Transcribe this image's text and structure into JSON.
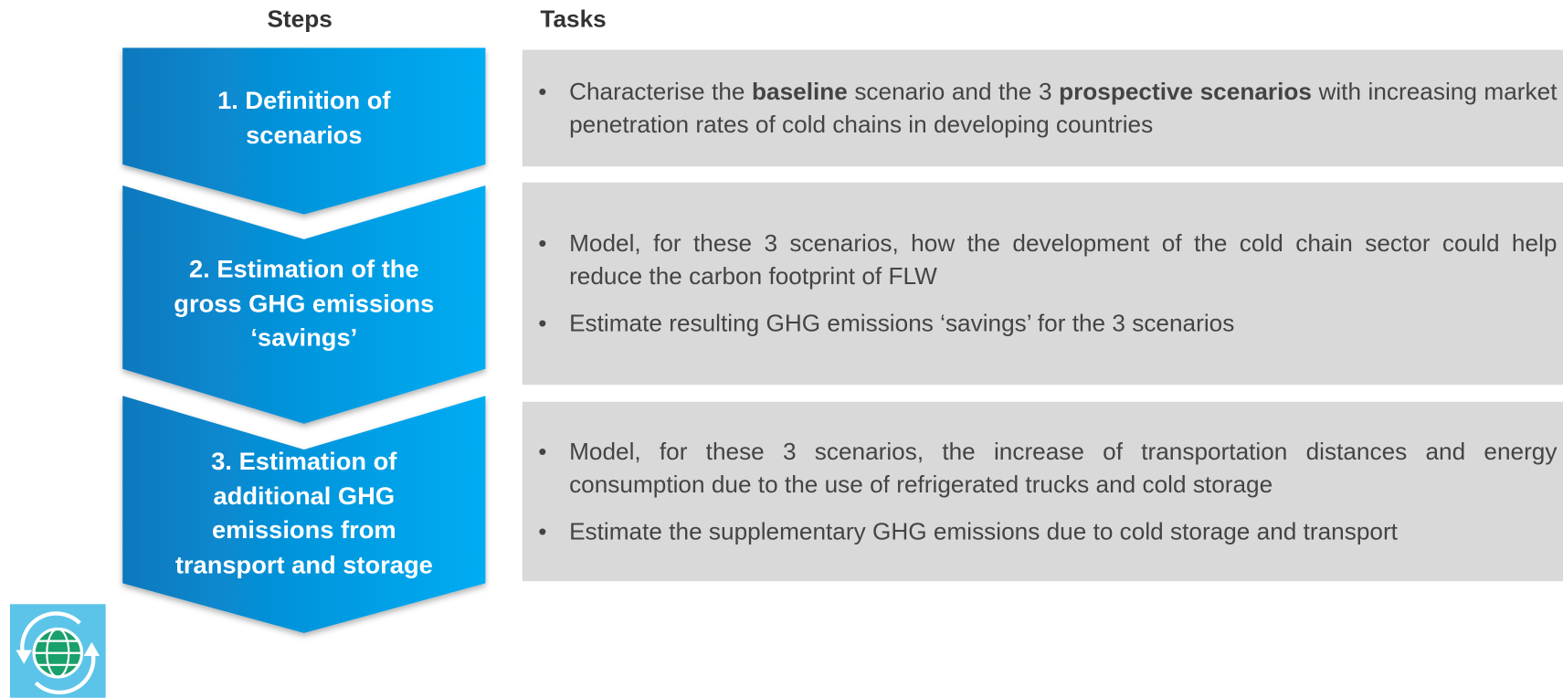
{
  "headers": {
    "steps": "Steps",
    "tasks": "Tasks"
  },
  "steps": [
    {
      "lines": [
        "1. Definition of",
        "scenarios"
      ],
      "tasks": [
        [
          {
            "text": "Characterise the "
          },
          {
            "text": "baseline",
            "bold": true
          },
          {
            "text": " scenario and the 3 "
          },
          {
            "text": "prospective scenarios",
            "bold": true
          },
          {
            "text": " with increasing market penetration rates of cold chains in developing countries"
          }
        ]
      ]
    },
    {
      "lines": [
        "2. Estimation of the",
        "gross GHG emissions",
        "‘savings’"
      ],
      "tasks": [
        [
          {
            "text": "Model, for these 3 scenarios, how the development of the cold chain sector could help reduce the carbon footprint of FLW"
          }
        ],
        [
          {
            "text": "Estimate resulting GHG emissions ‘savings’ for the 3 scenarios"
          }
        ]
      ]
    },
    {
      "lines": [
        "3. Estimation of",
        "additional GHG",
        "emissions from",
        "transport and storage"
      ],
      "tasks": [
        [
          {
            "text": "Model, for these 3 scenarios, the increase of transportation distances and energy consumption due to the use of refrigerated trucks and cold storage"
          }
        ],
        [
          {
            "text": "Estimate the supplementary GHG emissions due to cold storage and transport"
          }
        ]
      ]
    }
  ]
}
